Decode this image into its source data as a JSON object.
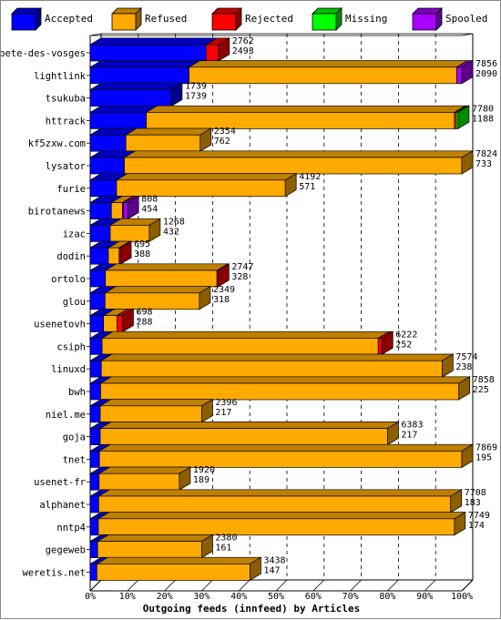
{
  "chart_data": {
    "type": "bar",
    "orientation": "horizontal",
    "stacked": true,
    "three_d": true,
    "xlabel": "Outgoing feeds (innfeed) by Articles",
    "ylabel": "",
    "xlim": [
      0,
      100
    ],
    "x_ticks": [
      "0%",
      "10%",
      "20%",
      "30%",
      "40%",
      "50%",
      "60%",
      "70%",
      "80%",
      "90%",
      "100%"
    ],
    "grid": "vertical dashed",
    "legend_position": "top",
    "colors": {
      "Accepted": "#0000ff",
      "Refused": "#ffaa00",
      "Rejected": "#ff0000",
      "Missing": "#00ff00",
      "Spooled": "#aa00ff"
    },
    "legend": [
      "Accepted",
      "Refused",
      "Rejected",
      "Missing",
      "Spooled"
    ],
    "rows": [
      {
        "label": "bete-des-vosges",
        "total": "2762",
        "accepted": "2493",
        "pct": [
          31.2,
          0,
          3.3,
          0,
          0
        ]
      },
      {
        "label": "lightlink",
        "total": "7856",
        "accepted": "2090",
        "pct": [
          26.6,
          72.0,
          0,
          0,
          1.4
        ]
      },
      {
        "label": "tsukuba",
        "total": "1739",
        "accepted": "1739",
        "pct": [
          21.8,
          0,
          0,
          0,
          0
        ]
      },
      {
        "label": "httrack",
        "total": "7780",
        "accepted": "1188",
        "pct": [
          15.1,
          82.9,
          0.5,
          0.5,
          0
        ]
      },
      {
        "label": "kf5zxw.com",
        "total": "2354",
        "accepted": "762",
        "pct": [
          9.6,
          20.0,
          0,
          0,
          0
        ]
      },
      {
        "label": "lysator",
        "total": "7824",
        "accepted": "733",
        "pct": [
          9.2,
          90.8,
          0,
          0,
          0
        ]
      },
      {
        "label": "furie",
        "total": "4192",
        "accepted": "571",
        "pct": [
          7.1,
          45.4,
          0,
          0,
          0
        ]
      },
      {
        "label": "birotanews",
        "total": "808",
        "accepted": "454",
        "pct": [
          5.7,
          3.0,
          0.3,
          0,
          1.1
        ]
      },
      {
        "label": "izac",
        "total": "1268",
        "accepted": "432",
        "pct": [
          5.4,
          10.5,
          0,
          0,
          0
        ]
      },
      {
        "label": "dodin",
        "total": "695",
        "accepted": "388",
        "pct": [
          4.9,
          2.9,
          0.3,
          0,
          0
        ]
      },
      {
        "label": "ortolo",
        "total": "2747",
        "accepted": "328",
        "pct": [
          4.1,
          30.0,
          0.3,
          0,
          0
        ]
      },
      {
        "label": "glou",
        "total": "2349",
        "accepted": "318",
        "pct": [
          4.0,
          25.4,
          0,
          0,
          0
        ]
      },
      {
        "label": "usenetovh",
        "total": "698",
        "accepted": "288",
        "pct": [
          3.6,
          3.6,
          1.5,
          0,
          0
        ]
      },
      {
        "label": "csiph",
        "total": "6222",
        "accepted": "252",
        "pct": [
          3.2,
          74.3,
          1.0,
          0,
          0
        ]
      },
      {
        "label": "linuxd",
        "total": "7574",
        "accepted": "238",
        "pct": [
          3.0,
          91.7,
          0,
          0,
          0
        ]
      },
      {
        "label": "bwh",
        "total": "7858",
        "accepted": "225",
        "pct": [
          2.8,
          96.4,
          0,
          0,
          0
        ]
      },
      {
        "label": "niel.me",
        "total": "2396",
        "accepted": "217",
        "pct": [
          2.7,
          27.3,
          0,
          0,
          0
        ]
      },
      {
        "label": "goja",
        "total": "6383",
        "accepted": "217",
        "pct": [
          2.7,
          77.3,
          0,
          0,
          0
        ]
      },
      {
        "label": "tnet",
        "total": "7869",
        "accepted": "195",
        "pct": [
          2.5,
          97.5,
          0,
          0,
          0
        ]
      },
      {
        "label": "usenet-fr",
        "total": "1920",
        "accepted": "189",
        "pct": [
          2.4,
          21.6,
          0,
          0,
          0
        ]
      },
      {
        "label": "alphanet",
        "total": "7708",
        "accepted": "183",
        "pct": [
          2.3,
          94.7,
          0,
          0,
          0
        ]
      },
      {
        "label": "nntp4",
        "total": "7749",
        "accepted": "174",
        "pct": [
          2.2,
          95.8,
          0,
          0,
          0
        ]
      },
      {
        "label": "gegeweb",
        "total": "2380",
        "accepted": "161",
        "pct": [
          2.0,
          28.0,
          0,
          0,
          0
        ]
      },
      {
        "label": "weretis.net",
        "total": "3438",
        "accepted": "147",
        "pct": [
          1.8,
          41.2,
          0,
          0,
          0
        ]
      }
    ]
  }
}
